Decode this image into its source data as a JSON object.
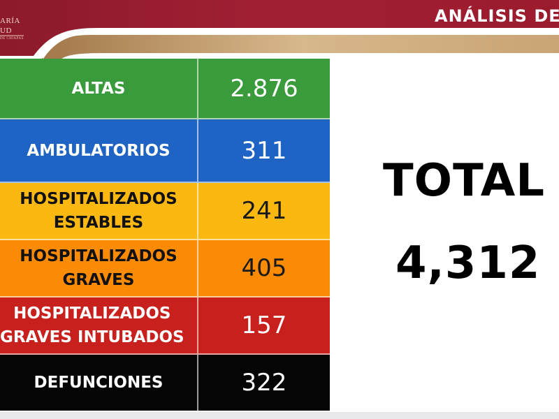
{
  "header": {
    "logo_line_1": "ARÍA",
    "logo_line_2": "UD",
    "logo_line_3": "DE CHIAPAS",
    "title": "ANÁLISIS DE",
    "colors": {
      "band": "#9b1b2e",
      "stripe_dark": "#7a5a35",
      "stripe_light": "#d8b98c"
    }
  },
  "table": {
    "rows": [
      {
        "label": "ALTAS",
        "value": "2.876",
        "color": "#3a9b3c"
      },
      {
        "label": "AMBULATORIOS",
        "value": "311",
        "color": "#1f64c4"
      },
      {
        "label": "HOSPITALIZADOS\nESTABLES",
        "value": "241",
        "color": "#fbb810"
      },
      {
        "label": "HOSPITALIZADOS\nGRAVES",
        "value": "405",
        "color": "#fb8a05"
      },
      {
        "label": "HOSPITALIZADOS\nGRAVES INTUBADOS",
        "value": "157",
        "color": "#c8201d"
      },
      {
        "label": "DEFUNCIONES",
        "value": "322",
        "color": "#050505"
      }
    ]
  },
  "total": {
    "label": "TOTAL",
    "value": "4,312"
  }
}
